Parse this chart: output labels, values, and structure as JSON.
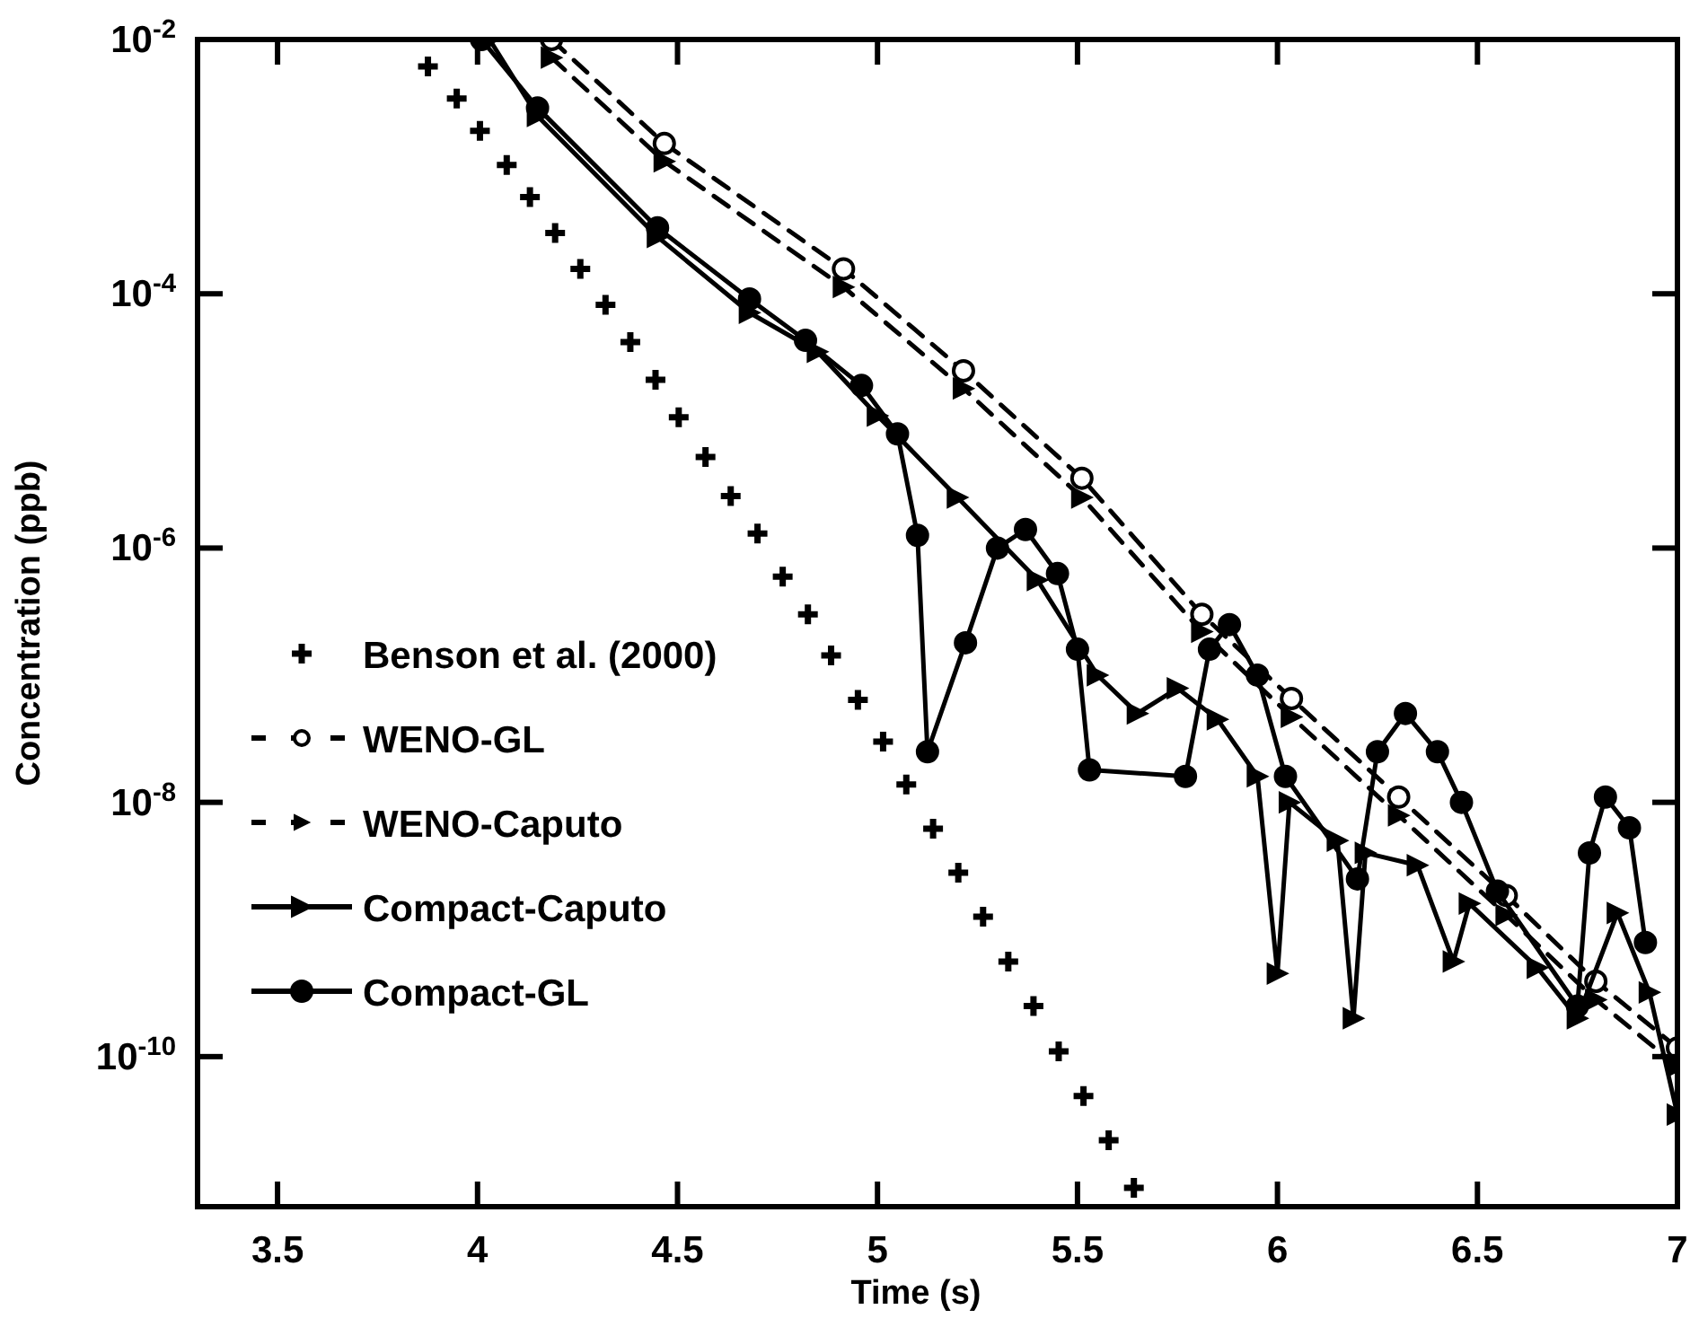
{
  "chart_data": {
    "type": "line",
    "xlabel": "Time (s)",
    "ylabel": "Concentration (ppb)",
    "log": "y",
    "xlim": [
      3.3,
      7
    ],
    "xticks": [
      3.5,
      4,
      4.5,
      5,
      5.5,
      6,
      6.5,
      7
    ],
    "ylim": [
      6.6e-12,
      0.01
    ],
    "yticks": [
      {
        "value": 0.01,
        "label": "10$^{-2}$"
      },
      {
        "value": 0.0001,
        "label": "10$^{-4}$"
      },
      {
        "value": 1e-06,
        "label": "10$^{-6}$"
      },
      {
        "value": 1e-08,
        "label": "10$^{-8}$"
      },
      {
        "value": 1e-10,
        "label": "10$^{-10}$"
      }
    ],
    "grid": false,
    "legend": "left",
    "series": [
      {
        "name": "Benson et al. (2000)",
        "type": "scatter",
        "marker": "cross",
        "color": "#000000",
        "x": [
          3.876,
          3.948,
          4.006,
          4.073,
          4.131,
          4.194,
          4.257,
          4.32,
          4.382,
          4.445,
          4.503,
          4.57,
          4.633,
          4.7,
          4.763,
          4.826,
          4.884,
          4.951,
          5.014,
          5.072,
          5.139,
          5.202,
          5.264,
          5.327,
          5.39,
          5.453,
          5.515,
          5.578,
          5.641
        ],
        "values": [
          0.00615,
          0.00343,
          0.00191,
          0.00103,
          0.000577,
          0.000301,
          0.000157,
          8.2e-05,
          4.17e-05,
          2.11e-05,
          1.07e-05,
          5.2e-06,
          2.56e-06,
          1.3e-06,
          5.96e-07,
          3.01e-07,
          1.43e-07,
          6.4e-08,
          3e-08,
          1.38e-08,
          6.2e-09,
          2.8e-09,
          1.26e-09,
          5.6e-10,
          2.5e-10,
          1.1e-10,
          4.9e-11,
          2.2e-11,
          9.3e-12
        ]
      },
      {
        "name": "WENO-GL",
        "line_style": "dashed",
        "marker": "circle",
        "color": "#000000",
        "x": [
          4.185,
          4.467,
          4.915,
          5.215,
          5.511,
          5.811,
          6.035,
          6.303,
          6.572,
          6.796,
          7
        ],
        "values": [
          0.01,
          0.00152,
          0.000157,
          2.48e-05,
          3.54e-06,
          3.01e-07,
          6.56e-08,
          1.1e-08,
          1.85e-09,
          3.91e-10,
          1.17e-10
        ]
      },
      {
        "name": "WENO-Caputo",
        "line_style": "dashed",
        "marker": "triangle",
        "color": "#000000",
        "x": [
          4.185,
          4.467,
          4.915,
          5.215,
          5.511,
          5.811,
          6.035,
          6.303,
          6.572,
          6.796,
          7
        ],
        "values": [
          0.0072,
          0.0011,
          0.000113,
          1.8e-05,
          2.5e-06,
          2.2e-07,
          4.7e-08,
          7.9e-09,
          1.3e-09,
          2.8e-10,
          8.4e-11
        ]
      },
      {
        "name": "Compact-Caputo",
        "line_style": "solid",
        "marker": "triangle",
        "color": "#000000",
        "x": [
          4.03,
          4.15,
          4.45,
          4.68,
          4.85,
          5,
          5.2,
          5.4,
          5.55,
          5.65,
          5.75,
          5.85,
          5.95,
          6,
          6.03,
          6.15,
          6.19,
          6.22,
          6.35,
          6.44,
          6.48,
          6.65,
          6.75,
          6.85,
          6.93,
          7
        ],
        "values": [
          0.01,
          0.0025,
          0.00028,
          7.1e-05,
          3.5e-05,
          1.1e-05,
          2.5e-06,
          5.6e-07,
          1e-07,
          5e-08,
          7.9e-08,
          4.5e-08,
          1.6e-08,
          4.5e-10,
          1e-08,
          5e-09,
          2e-10,
          4e-09,
          3.2e-09,
          5.6e-10,
          1.6e-09,
          5e-10,
          2e-10,
          1.35e-09,
          3.2e-10,
          3.5e-11
        ]
      },
      {
        "name": "Compact-GL",
        "line_style": "solid",
        "marker": "circle",
        "color": "#000000",
        "x": [
          4.01,
          4.15,
          4.45,
          4.68,
          4.82,
          4.96,
          5.05,
          5.1,
          5.125,
          5.22,
          5.3,
          5.37,
          5.45,
          5.5,
          5.53,
          5.77,
          5.83,
          5.88,
          5.95,
          6.02,
          6.2,
          6.25,
          6.32,
          6.4,
          6.46,
          6.55,
          6.75,
          6.78,
          6.82,
          6.88,
          6.92
        ],
        "values": [
          0.01,
          0.0029,
          0.00033,
          9.1e-05,
          4.3e-05,
          1.9e-05,
          7.9e-06,
          1.26e-06,
          2.5e-08,
          1.8e-07,
          1e-06,
          1.4e-06,
          6.3e-07,
          1.6e-07,
          1.8e-08,
          1.6e-08,
          1.6e-07,
          2.5e-07,
          1e-07,
          1.6e-08,
          2.5e-09,
          2.5e-08,
          5e-08,
          2.5e-08,
          1e-08,
          2e-09,
          2.5e-10,
          4e-09,
          1.1e-08,
          6.3e-09,
          7.9e-10
        ]
      }
    ]
  }
}
